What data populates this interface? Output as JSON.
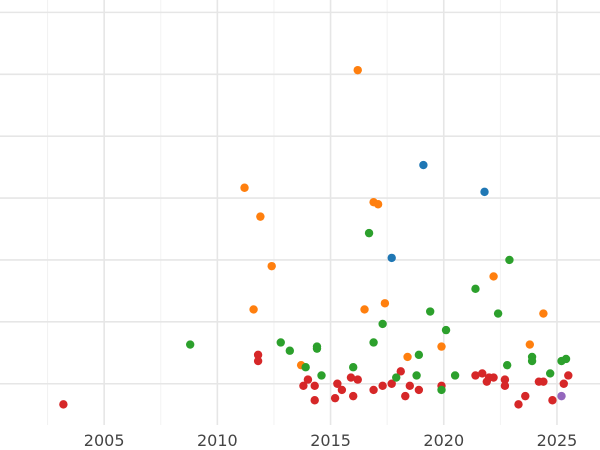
{
  "chart_data": {
    "type": "scatter",
    "title": "",
    "xlabel": "",
    "ylabel": "",
    "xlim": [
      2000.4,
      2026.9
    ],
    "ylim": [
      -1.0,
      19.6
    ],
    "x_ticks": [
      {
        "value": 2005,
        "label": "2005"
      },
      {
        "value": 2010,
        "label": "2010"
      },
      {
        "value": 2015,
        "label": "2015"
      },
      {
        "value": 2020,
        "label": "2020"
      },
      {
        "value": 2025,
        "label": "2025"
      }
    ],
    "x_minor_grid": [
      2002.5,
      2007.5,
      2012.5,
      2017.5,
      2022.5
    ],
    "y_grid": [
      1,
      4,
      7,
      10,
      13,
      16,
      19
    ],
    "grid": true,
    "legend": "none",
    "series": [
      {
        "color": "#d62728",
        "points": [
          [
            2003.2,
            0.0
          ],
          [
            2011.8,
            2.4
          ],
          [
            2011.8,
            2.1
          ],
          [
            2013.8,
            0.9
          ],
          [
            2014.0,
            1.2
          ],
          [
            2014.3,
            0.9
          ],
          [
            2014.3,
            0.2
          ],
          [
            2015.2,
            0.3
          ],
          [
            2015.3,
            1.0
          ],
          [
            2015.5,
            0.7
          ],
          [
            2015.9,
            1.3
          ],
          [
            2016.0,
            0.4
          ],
          [
            2016.2,
            1.2
          ],
          [
            2016.9,
            0.7
          ],
          [
            2017.3,
            0.9
          ],
          [
            2017.7,
            1.0
          ],
          [
            2018.1,
            1.6
          ],
          [
            2018.3,
            0.4
          ],
          [
            2018.5,
            0.9
          ],
          [
            2018.9,
            0.7
          ],
          [
            2019.9,
            0.9
          ],
          [
            2021.4,
            1.4
          ],
          [
            2021.7,
            1.5
          ],
          [
            2021.9,
            1.1
          ],
          [
            2022.0,
            1.3
          ],
          [
            2022.2,
            1.3
          ],
          [
            2022.7,
            1.2
          ],
          [
            2022.7,
            0.9
          ],
          [
            2023.3,
            0.0
          ],
          [
            2023.6,
            0.4
          ],
          [
            2024.2,
            1.1
          ],
          [
            2024.4,
            1.1
          ],
          [
            2024.8,
            0.2
          ],
          [
            2025.3,
            1.0
          ],
          [
            2025.5,
            1.4
          ]
        ]
      },
      {
        "color": "#ff7f0e",
        "points": [
          [
            2011.2,
            10.5
          ],
          [
            2011.6,
            4.6
          ],
          [
            2011.9,
            9.1
          ],
          [
            2012.4,
            6.7
          ],
          [
            2013.7,
            1.9
          ],
          [
            2016.2,
            16.2
          ],
          [
            2016.5,
            4.6
          ],
          [
            2016.9,
            9.8
          ],
          [
            2017.1,
            9.7
          ],
          [
            2017.4,
            4.9
          ],
          [
            2018.4,
            2.3
          ],
          [
            2019.9,
            2.8
          ],
          [
            2022.2,
            6.2
          ],
          [
            2023.8,
            2.9
          ],
          [
            2024.4,
            4.4
          ]
        ]
      },
      {
        "color": "#2ca02c",
        "points": [
          [
            2008.8,
            2.9
          ],
          [
            2012.8,
            3.0
          ],
          [
            2013.2,
            2.6
          ],
          [
            2013.9,
            1.8
          ],
          [
            2014.4,
            2.8
          ],
          [
            2014.4,
            2.7
          ],
          [
            2014.6,
            1.4
          ],
          [
            2016.0,
            1.8
          ],
          [
            2016.7,
            8.3
          ],
          [
            2016.9,
            3.0
          ],
          [
            2017.3,
            3.9
          ],
          [
            2017.9,
            1.3
          ],
          [
            2018.8,
            1.4
          ],
          [
            2018.9,
            2.4
          ],
          [
            2019.4,
            4.5
          ],
          [
            2019.9,
            0.7
          ],
          [
            2020.1,
            3.6
          ],
          [
            2020.5,
            1.4
          ],
          [
            2021.4,
            5.6
          ],
          [
            2022.4,
            4.4
          ],
          [
            2022.9,
            7.0
          ],
          [
            2022.8,
            1.9
          ],
          [
            2023.9,
            2.3
          ],
          [
            2023.9,
            2.1
          ],
          [
            2024.7,
            1.5
          ],
          [
            2025.2,
            2.1
          ],
          [
            2025.4,
            2.2
          ]
        ]
      },
      {
        "color": "#1f77b4",
        "points": [
          [
            2019.1,
            11.6
          ],
          [
            2021.8,
            10.3
          ],
          [
            2017.7,
            7.1
          ]
        ]
      },
      {
        "color": "#9467bd",
        "points": [
          [
            2025.2,
            0.4
          ]
        ]
      }
    ]
  }
}
